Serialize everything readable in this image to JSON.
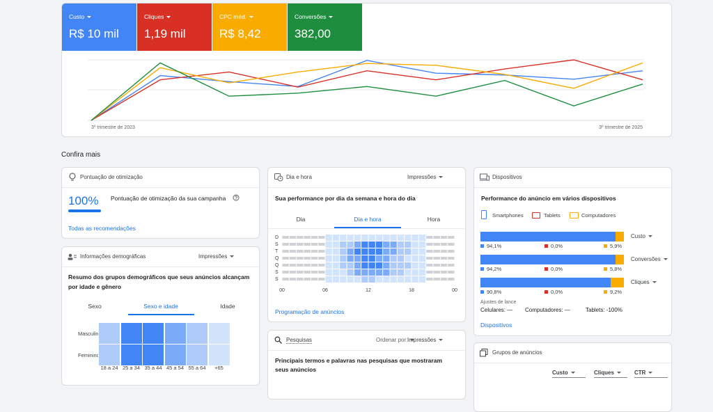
{
  "header": {
    "metrics": [
      {
        "name": "Custo",
        "value": "R$ 10 mil",
        "color": "#4285f4"
      },
      {
        "name": "Cliques",
        "value": "1,19 mil",
        "color": "#d93025"
      },
      {
        "name": "CPC méd.",
        "value": "R$ 8,42",
        "color": "#f9ab00"
      },
      {
        "name": "Conversões",
        "value": "382,00",
        "color": "#1e8e3e"
      }
    ]
  },
  "trend_chart": {
    "type": "line",
    "categories": [
      "3º trimestre de 2023",
      null,
      null,
      null,
      null,
      null,
      null,
      null,
      "3º trimestre de 2025"
    ],
    "ylim": [
      0,
      100
    ],
    "series": [
      {
        "color": "#4285f4",
        "values": [
          0,
          74,
          64,
          56,
          99,
          78,
          75,
          68,
          82
        ]
      },
      {
        "color": "#d93025",
        "values": [
          0,
          67,
          80,
          55,
          82,
          67,
          85,
          100,
          67
        ]
      },
      {
        "color": "#f9ab00",
        "values": [
          0,
          87,
          62,
          80,
          94,
          91,
          76,
          53,
          95
        ]
      },
      {
        "color": "#1e8e3e",
        "values": [
          0,
          95,
          40,
          45,
          56,
          40,
          66,
          24,
          60
        ]
      }
    ]
  },
  "section_title": "Confira mais",
  "optimization": {
    "title": "Pontuação de otimização",
    "score": {
      "value": 100,
      "label": "100%"
    },
    "description": "Pontuação de otimização da sua campanha",
    "link": "Todas as recomendações"
  },
  "demographics": {
    "title": "Informações demográficas",
    "dropdown": "Impressões",
    "description": "Resumo dos grupos demográficos que seus anúncios alcançam por idade e gênero",
    "tabs": [
      "Sexo",
      "Sexo e idade",
      "Idade"
    ],
    "rows": [
      "Masculino",
      "Feminino"
    ],
    "columns": [
      "18 a 24",
      "25 a 34",
      "35 a 44",
      "45 a 54",
      "55 a 64",
      "+65"
    ],
    "values": [
      [
        2,
        4,
        4,
        3,
        2,
        1
      ],
      [
        2,
        4,
        4,
        3,
        2,
        1
      ]
    ]
  },
  "day_hour": {
    "title": "Dia e hora",
    "dropdown": "Impressões",
    "description": "Sua performance por dia da semana e hora do dia",
    "tabs": [
      "Dia",
      "Dia e hora",
      "Hora"
    ],
    "rows": [
      "D",
      "S",
      "T",
      "Q",
      "Q",
      "S",
      "S"
    ],
    "hour_labels": [
      "00",
      "06",
      "12",
      "18",
      "00"
    ],
    "values": [
      [
        0,
        0,
        0,
        0,
        0,
        0,
        1,
        1,
        1,
        1,
        1,
        1,
        1,
        1,
        1,
        1,
        1,
        1,
        1,
        1,
        0,
        0,
        0,
        0
      ],
      [
        0,
        0,
        0,
        0,
        0,
        0,
        1,
        1,
        2,
        2,
        3,
        4,
        4,
        4,
        3,
        3,
        2,
        2,
        1,
        1,
        0,
        0,
        0,
        0
      ],
      [
        0,
        0,
        0,
        0,
        0,
        0,
        1,
        1,
        2,
        3,
        4,
        4,
        4,
        4,
        3,
        3,
        2,
        2,
        1,
        1,
        0,
        0,
        0,
        0
      ],
      [
        0,
        0,
        0,
        0,
        0,
        0,
        1,
        1,
        2,
        3,
        3,
        4,
        4,
        3,
        3,
        2,
        2,
        1,
        1,
        1,
        0,
        0,
        0,
        0
      ],
      [
        0,
        0,
        0,
        0,
        0,
        0,
        1,
        1,
        2,
        2,
        3,
        4,
        4,
        4,
        3,
        2,
        2,
        2,
        1,
        1,
        0,
        0,
        0,
        0
      ],
      [
        0,
        0,
        0,
        0,
        0,
        0,
        1,
        1,
        1,
        2,
        3,
        3,
        3,
        3,
        3,
        2,
        2,
        1,
        1,
        1,
        0,
        0,
        0,
        0
      ],
      [
        0,
        0,
        0,
        0,
        0,
        0,
        1,
        1,
        1,
        1,
        1,
        2,
        2,
        1,
        1,
        1,
        1,
        1,
        1,
        1,
        0,
        0,
        0,
        0
      ]
    ],
    "link": "Programação de anúncios"
  },
  "devices": {
    "title": "Dispositivos",
    "description": "Performance do anúncio em vários dispositivos",
    "legend": [
      {
        "name": "Smartphones",
        "color": "#4285f4"
      },
      {
        "name": "Tablets",
        "color": "#d93025"
      },
      {
        "name": "Computadores",
        "color": "#f9ab00"
      }
    ],
    "bars": [
      {
        "metric": "Custo",
        "values": [
          94.1,
          0.0,
          5.9
        ],
        "value_labels": [
          "94,1%",
          "0,0%",
          "5,9%"
        ]
      },
      {
        "metric": "Conversões",
        "values": [
          94.2,
          0.0,
          5.8
        ],
        "value_labels": [
          "94,2%",
          "0,0%",
          "5,8%"
        ]
      },
      {
        "metric": "Cliques",
        "values": [
          90.8,
          0.0,
          9.2
        ],
        "value_labels": [
          "90,8%",
          "0,0%",
          "9,2%"
        ]
      }
    ],
    "bid_adjustments": {
      "title": "Ajustes de lance",
      "items": [
        "Celulares: —",
        "Computadores: —",
        "Tablets: -100%"
      ]
    },
    "link": "Dispositivos"
  },
  "searches": {
    "title": "Pesquisas",
    "sort_label": "Ordenar por:",
    "dropdown": "Impressões",
    "description": "Principais termos e palavras nas pesquisas que mostraram seus anúncios"
  },
  "ad_groups": {
    "title": "Grupos de anúncios",
    "columns": [
      "Custo",
      "Cliques",
      "CTR"
    ]
  }
}
